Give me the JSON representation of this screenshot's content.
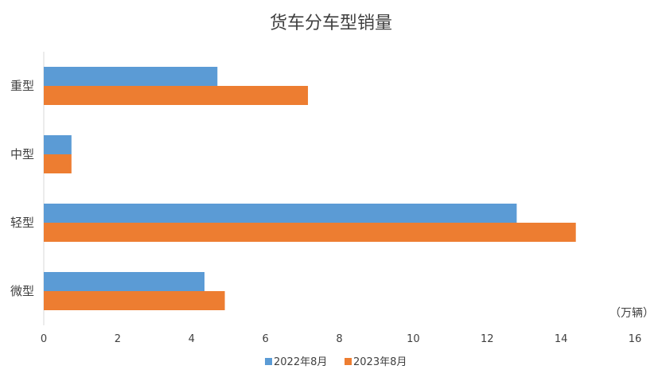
{
  "chart_data": {
    "type": "bar",
    "orientation": "horizontal",
    "title": "货车分车型销量",
    "categories": [
      "重型",
      "中型",
      "轻型",
      "微型"
    ],
    "series": [
      {
        "name": "2022年8月",
        "color": "#5B9BD5",
        "values": [
          4.7,
          0.75,
          12.8,
          4.35
        ]
      },
      {
        "name": "2023年8月",
        "color": "#ED7D31",
        "values": [
          7.15,
          0.75,
          14.4,
          4.9
        ]
      }
    ],
    "xlim": [
      0,
      16
    ],
    "xticks": [
      0,
      2,
      4,
      6,
      8,
      10,
      12,
      14,
      16
    ],
    "unit": "（万辆）",
    "grid": false,
    "legend": "bottom"
  }
}
